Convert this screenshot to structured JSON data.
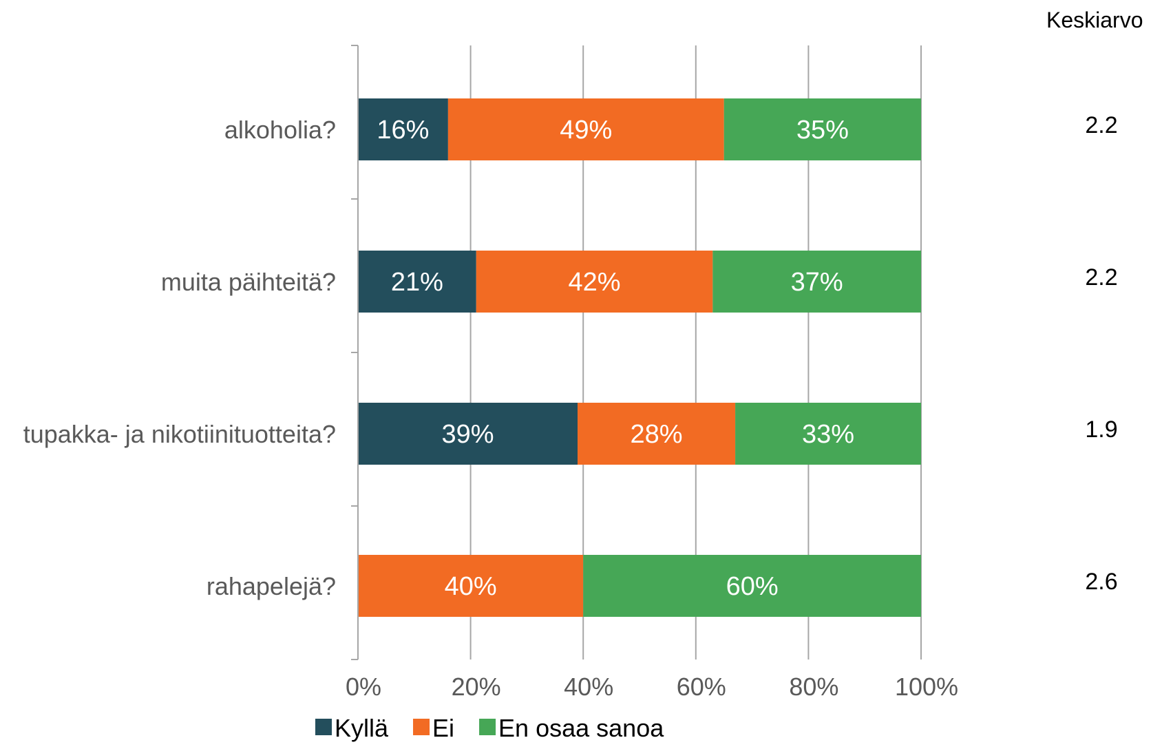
{
  "chart_data": {
    "type": "bar",
    "orientation": "horizontal",
    "stacked": true,
    "title": "",
    "xlabel": "",
    "ylabel": "",
    "xlim": [
      0,
      100
    ],
    "x_ticks": [
      "0%",
      "20%",
      "40%",
      "60%",
      "80%",
      "100%"
    ],
    "grid": true,
    "legend_position": "bottom",
    "categories": [
      "alkoholia?",
      "muita päihteitä?",
      "tupakka- ja nikotiinituotteita?",
      "rahapelejä?"
    ],
    "series": [
      {
        "name": "Kyllä",
        "color": "#234e5c",
        "values": [
          16,
          21,
          39,
          0
        ],
        "labels": [
          "16%",
          "21%",
          "39%",
          ""
        ]
      },
      {
        "name": "Ei",
        "color": "#f26b23",
        "values": [
          49,
          42,
          28,
          40
        ],
        "labels": [
          "49%",
          "42%",
          "28%",
          "40%"
        ]
      },
      {
        "name": "En osaa sanoa",
        "color": "#46a756",
        "values": [
          35,
          37,
          33,
          60
        ],
        "labels": [
          "35%",
          "37%",
          "33%",
          "60%"
        ]
      }
    ],
    "average_header": "Keskiarvo",
    "averages": [
      "2.2",
      "2.2",
      "1.9",
      "2.6"
    ]
  }
}
